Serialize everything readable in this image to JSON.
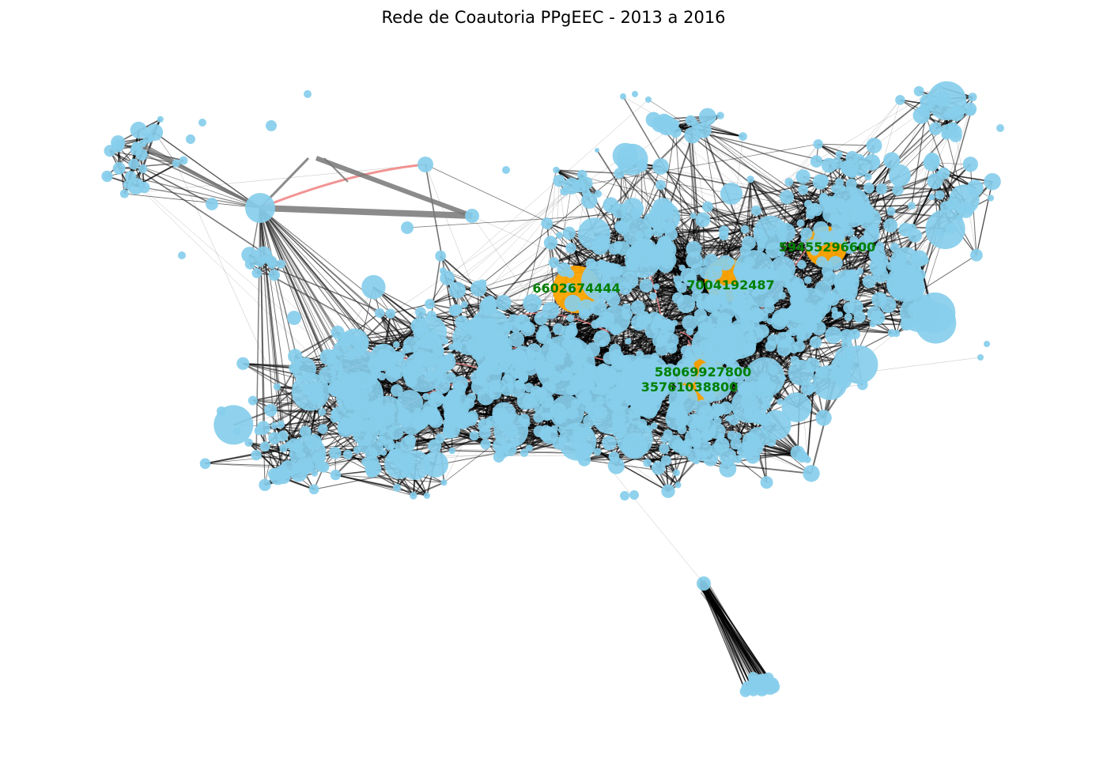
{
  "title": "Rede de Coautoria PPgEEC - 2013 a 2016",
  "colors": {
    "node": "#87CEEB",
    "highlight_node": "#FFA500",
    "edge": "#000000",
    "red_edge": "#F08080",
    "label": "#008000"
  },
  "highlighted_authors": [
    {
      "id": "6602674444"
    },
    {
      "id": "7004192487"
    },
    {
      "id": "59455296600"
    },
    {
      "id": "58069927800"
    },
    {
      "id": "35761038800"
    }
  ]
}
